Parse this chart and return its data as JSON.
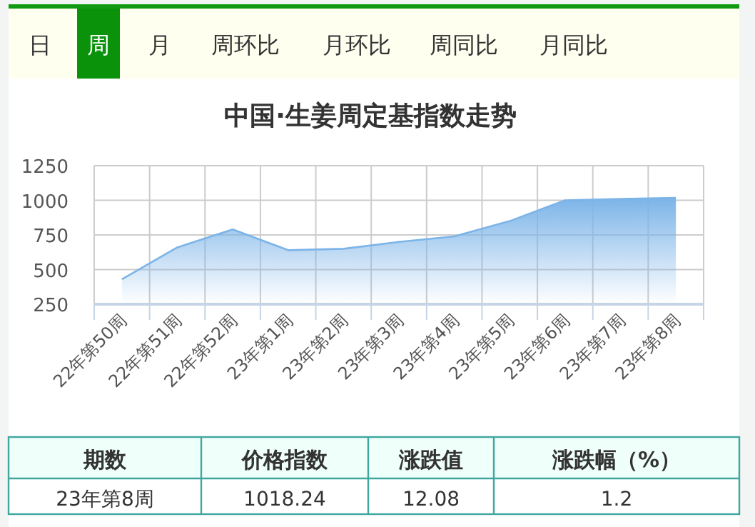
{
  "chart_data": {
    "type": "area",
    "title": "中国·生姜周定基指数走势",
    "categories": [
      "22年第50周",
      "22年第51周",
      "22年第52周",
      "23年第1周",
      "23年第2周",
      "23年第3周",
      "23年第4周",
      "23年第5周",
      "23年第6周",
      "23年第7周",
      "23年第8周"
    ],
    "series": [
      {
        "color": "#7cb4e8",
        "values": [
          430,
          660,
          790,
          640,
          650,
          700,
          740,
          850,
          1000,
          1010,
          1018.24
        ]
      }
    ],
    "ylim": [
      250,
      1250
    ],
    "yticks": [
      250,
      500,
      750,
      1000,
      1250
    ],
    "grid": true,
    "annotations": [
      "日",
      "周",
      "月",
      "周环比",
      "月环比",
      "周同比",
      "月同比",
      "期数",
      "价格指数",
      "涨跌值",
      "涨跌幅（%）",
      "23年第8周",
      "1018.24",
      "12.08",
      "1.2"
    ]
  }
}
